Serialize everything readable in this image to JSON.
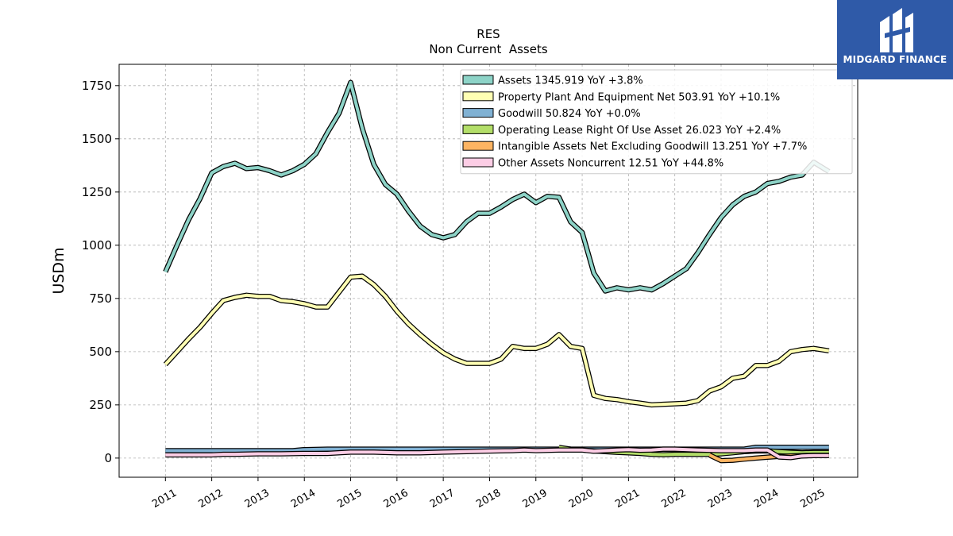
{
  "brand": {
    "name": "MIDGARD FINANCE",
    "color": "#2f5aa8"
  },
  "chart_data": {
    "type": "line",
    "title": "RES",
    "subtitle": "Non Current  Assets",
    "ylabel": "USDm",
    "xlabel": "",
    "ylim": [
      -90,
      1850
    ],
    "xlim": [
      2010.0,
      2025.95
    ],
    "yticks": [
      0,
      250,
      500,
      750,
      1000,
      1250,
      1500,
      1750
    ],
    "ytick_labels": [
      "0",
      "250",
      "500",
      "750",
      "1000",
      "1250",
      "1500",
      "1750"
    ],
    "xticks": [
      2011,
      2012,
      2013,
      2014,
      2015,
      2016,
      2017,
      2018,
      2019,
      2020,
      2021,
      2022,
      2023,
      2024,
      2025
    ],
    "xtick_labels": [
      "2011",
      "2012",
      "2013",
      "2014",
      "2015",
      "2016",
      "2017",
      "2018",
      "2019",
      "2020",
      "2021",
      "2022",
      "2023",
      "2024",
      "2025"
    ],
    "grid": true,
    "legend_position": "top-right",
    "series": [
      {
        "name": "Assets",
        "legend_label": "Assets  1345.919 YoY +3.8%",
        "color": "#8dd3c7",
        "x": [
          2011.0,
          2011.25,
          2011.5,
          2011.75,
          2012.0,
          2012.25,
          2012.5,
          2012.75,
          2013.0,
          2013.25,
          2013.5,
          2013.75,
          2014.0,
          2014.25,
          2014.5,
          2014.75,
          2015.0,
          2015.25,
          2015.5,
          2015.75,
          2016.0,
          2016.25,
          2016.5,
          2016.75,
          2017.0,
          2017.25,
          2017.5,
          2017.75,
          2018.0,
          2018.25,
          2018.5,
          2018.75,
          2019.0,
          2019.25,
          2019.5,
          2019.75,
          2020.0,
          2020.25,
          2020.5,
          2020.75,
          2021.0,
          2021.25,
          2021.5,
          2021.75,
          2022.0,
          2022.25,
          2022.5,
          2022.75,
          2023.0,
          2023.25,
          2023.5,
          2023.75,
          2024.0,
          2024.25,
          2024.5,
          2024.75,
          2025.0,
          2025.33
        ],
        "values": [
          875,
          1000,
          1120,
          1220,
          1340,
          1370,
          1385,
          1360,
          1365,
          1350,
          1330,
          1350,
          1380,
          1430,
          1530,
          1620,
          1765,
          1550,
          1380,
          1285,
          1240,
          1160,
          1090,
          1050,
          1035,
          1050,
          1110,
          1150,
          1150,
          1180,
          1215,
          1240,
          1200,
          1230,
          1225,
          1110,
          1060,
          870,
          785,
          800,
          790,
          800,
          790,
          820,
          855,
          890,
          965,
          1050,
          1130,
          1190,
          1230,
          1250,
          1290,
          1300,
          1320,
          1330,
          1390,
          1346
        ]
      },
      {
        "name": "Property Plant And Equipment Net",
        "legend_label": "Property Plant And Equipment Net  503.91 YoY +10.1%",
        "color": "#ffffb3",
        "x": [
          2011.0,
          2011.25,
          2011.5,
          2011.75,
          2012.0,
          2012.25,
          2012.5,
          2012.75,
          2013.0,
          2013.25,
          2013.5,
          2013.75,
          2014.0,
          2014.25,
          2014.5,
          2014.75,
          2015.0,
          2015.25,
          2015.5,
          2015.75,
          2016.0,
          2016.25,
          2016.5,
          2016.75,
          2017.0,
          2017.25,
          2017.5,
          2017.75,
          2018.0,
          2018.25,
          2018.5,
          2018.75,
          2019.0,
          2019.25,
          2019.5,
          2019.75,
          2020.0,
          2020.25,
          2020.5,
          2020.75,
          2021.0,
          2021.25,
          2021.5,
          2021.75,
          2022.0,
          2022.25,
          2022.5,
          2022.75,
          2023.0,
          2023.25,
          2023.5,
          2023.75,
          2024.0,
          2024.25,
          2024.5,
          2024.75,
          2025.0,
          2025.33
        ],
        "values": [
          440,
          500,
          560,
          615,
          680,
          740,
          755,
          765,
          760,
          760,
          740,
          735,
          725,
          710,
          710,
          780,
          850,
          855,
          815,
          760,
          690,
          630,
          580,
          535,
          495,
          465,
          445,
          445,
          445,
          465,
          525,
          515,
          515,
          535,
          580,
          525,
          515,
          295,
          280,
          275,
          265,
          258,
          250,
          253,
          255,
          258,
          270,
          315,
          335,
          375,
          385,
          435,
          435,
          455,
          500,
          510,
          515,
          504
        ]
      },
      {
        "name": "Goodwill",
        "legend_label": "Goodwill  50.824 YoY +0.0%",
        "color": "#80b1d3",
        "x": [
          2011.0,
          2011.5,
          2012.0,
          2012.5,
          2013.0,
          2013.5,
          2013.75,
          2014.0,
          2014.5,
          2015.0,
          2015.5,
          2016.0,
          2016.5,
          2017.0,
          2017.5,
          2018.0,
          2018.5,
          2019.0,
          2019.5,
          2020.0,
          2020.5,
          2021.0,
          2021.5,
          2022.0,
          2022.5,
          2023.0,
          2023.5,
          2023.75,
          2024.0,
          2024.5,
          2025.0,
          2025.33
        ],
        "values": [
          35,
          35,
          35,
          35,
          35,
          35,
          35,
          40,
          42,
          42,
          42,
          42,
          42,
          42,
          42,
          42,
          42,
          42,
          42,
          42,
          42,
          42,
          42,
          42,
          42,
          42,
          42,
          51,
          51,
          51,
          51,
          51
        ]
      },
      {
        "name": "Operating Lease Right Of Use Asset",
        "legend_label": "Operating Lease Right Of Use Asset  26.023 YoY +2.4%",
        "color": "#b3de69",
        "x": [
          2019.5,
          2019.75,
          2020.0,
          2020.25,
          2020.5,
          2020.75,
          2021.0,
          2021.25,
          2021.5,
          2021.75,
          2022.0,
          2022.25,
          2022.5,
          2022.75,
          2023.0,
          2023.25,
          2023.5,
          2023.75,
          2024.0,
          2024.25,
          2024.5,
          2024.75,
          2025.0,
          2025.33
        ],
        "values": [
          50,
          42,
          38,
          34,
          30,
          27,
          25,
          22,
          18,
          16,
          18,
          18,
          17,
          18,
          20,
          25,
          30,
          33,
          34,
          30,
          27,
          25,
          26,
          26
        ]
      },
      {
        "name": "Intangible Assets Net Excluding Goodwill",
        "legend_label": "Intangible Assets Net Excluding Goodwill  13.251 YoY +7.7%",
        "color": "#fdb462",
        "x": [
          2022.75,
          2023.0,
          2023.25,
          2023.5,
          2023.75,
          2024.0,
          2024.25,
          2024.5,
          2024.75,
          2025.0,
          2025.33
        ],
        "values": [
          14,
          -12,
          -10,
          -5,
          0,
          4,
          8,
          10,
          12,
          13,
          13
        ]
      },
      {
        "name": "Other Assets Noncurrent",
        "legend_label": "Other Assets Noncurrent  12.51 YoY +44.8%",
        "color": "#fccde5",
        "x": [
          2011.0,
          2011.5,
          2012.0,
          2012.25,
          2012.5,
          2013.0,
          2013.5,
          2014.0,
          2014.5,
          2015.0,
          2015.5,
          2016.0,
          2016.5,
          2017.0,
          2017.5,
          2018.0,
          2018.5,
          2018.75,
          2019.0,
          2019.5,
          2020.0,
          2020.25,
          2020.5,
          2020.75,
          2021.0,
          2021.25,
          2021.5,
          2021.75,
          2022.0,
          2022.5,
          2023.0,
          2023.5,
          2023.75,
          2024.0,
          2024.25,
          2024.5,
          2024.75,
          2025.0,
          2025.33
        ],
        "values": [
          15,
          15,
          15,
          18,
          18,
          20,
          20,
          22,
          22,
          28,
          28,
          25,
          25,
          28,
          30,
          33,
          35,
          38,
          35,
          38,
          38,
          32,
          35,
          38,
          40,
          37,
          38,
          42,
          42,
          38,
          35,
          35,
          38,
          38,
          5,
          2,
          10,
          12,
          12
        ]
      }
    ]
  }
}
